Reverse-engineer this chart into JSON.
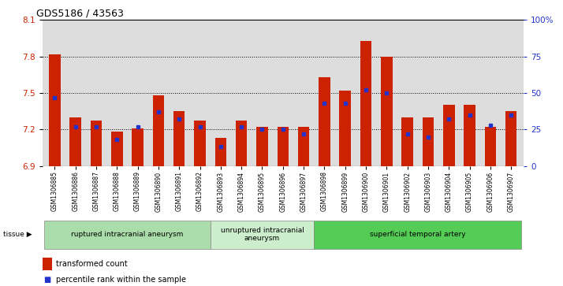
{
  "title": "GDS5186 / 43563",
  "samples": [
    "GSM1306885",
    "GSM1306886",
    "GSM1306887",
    "GSM1306888",
    "GSM1306889",
    "GSM1306890",
    "GSM1306891",
    "GSM1306892",
    "GSM1306893",
    "GSM1306894",
    "GSM1306895",
    "GSM1306896",
    "GSM1306897",
    "GSM1306898",
    "GSM1306899",
    "GSM1306900",
    "GSM1306901",
    "GSM1306902",
    "GSM1306903",
    "GSM1306904",
    "GSM1306905",
    "GSM1306906",
    "GSM1306907"
  ],
  "transformed_count": [
    7.82,
    7.3,
    7.27,
    7.18,
    7.21,
    7.48,
    7.35,
    7.27,
    7.13,
    7.27,
    7.22,
    7.22,
    7.22,
    7.63,
    7.52,
    7.93,
    7.8,
    7.3,
    7.3,
    7.4,
    7.4,
    7.22,
    7.35
  ],
  "percentile_rank": [
    47,
    27,
    27,
    18,
    27,
    37,
    32,
    27,
    13,
    27,
    25,
    25,
    22,
    43,
    43,
    52,
    50,
    22,
    20,
    32,
    35,
    28,
    35
  ],
  "groups": [
    {
      "label": "ruptured intracranial aneurysm",
      "start": 0,
      "end": 8
    },
    {
      "label": "unruptured intracranial\naneurysm",
      "start": 8,
      "end": 13
    },
    {
      "label": "superficial temporal artery",
      "start": 13,
      "end": 23
    }
  ],
  "group_colors": [
    "#aaddaa",
    "#cceecc",
    "#55cc55"
  ],
  "ylim_left": [
    6.9,
    8.1
  ],
  "ylim_right": [
    0,
    100
  ],
  "yticks_left": [
    6.9,
    7.2,
    7.5,
    7.8,
    8.1
  ],
  "yticks_right": [
    0,
    25,
    50,
    75,
    100
  ],
  "ytick_labels_right": [
    "0",
    "25",
    "50",
    "75",
    "100%"
  ],
  "bar_color": "#cc2200",
  "percentile_color": "#2233cc",
  "plot_bg_color": "#dddddd",
  "bar_width": 0.55,
  "base_value": 6.9,
  "grid_levels": [
    7.2,
    7.5,
    7.8
  ]
}
